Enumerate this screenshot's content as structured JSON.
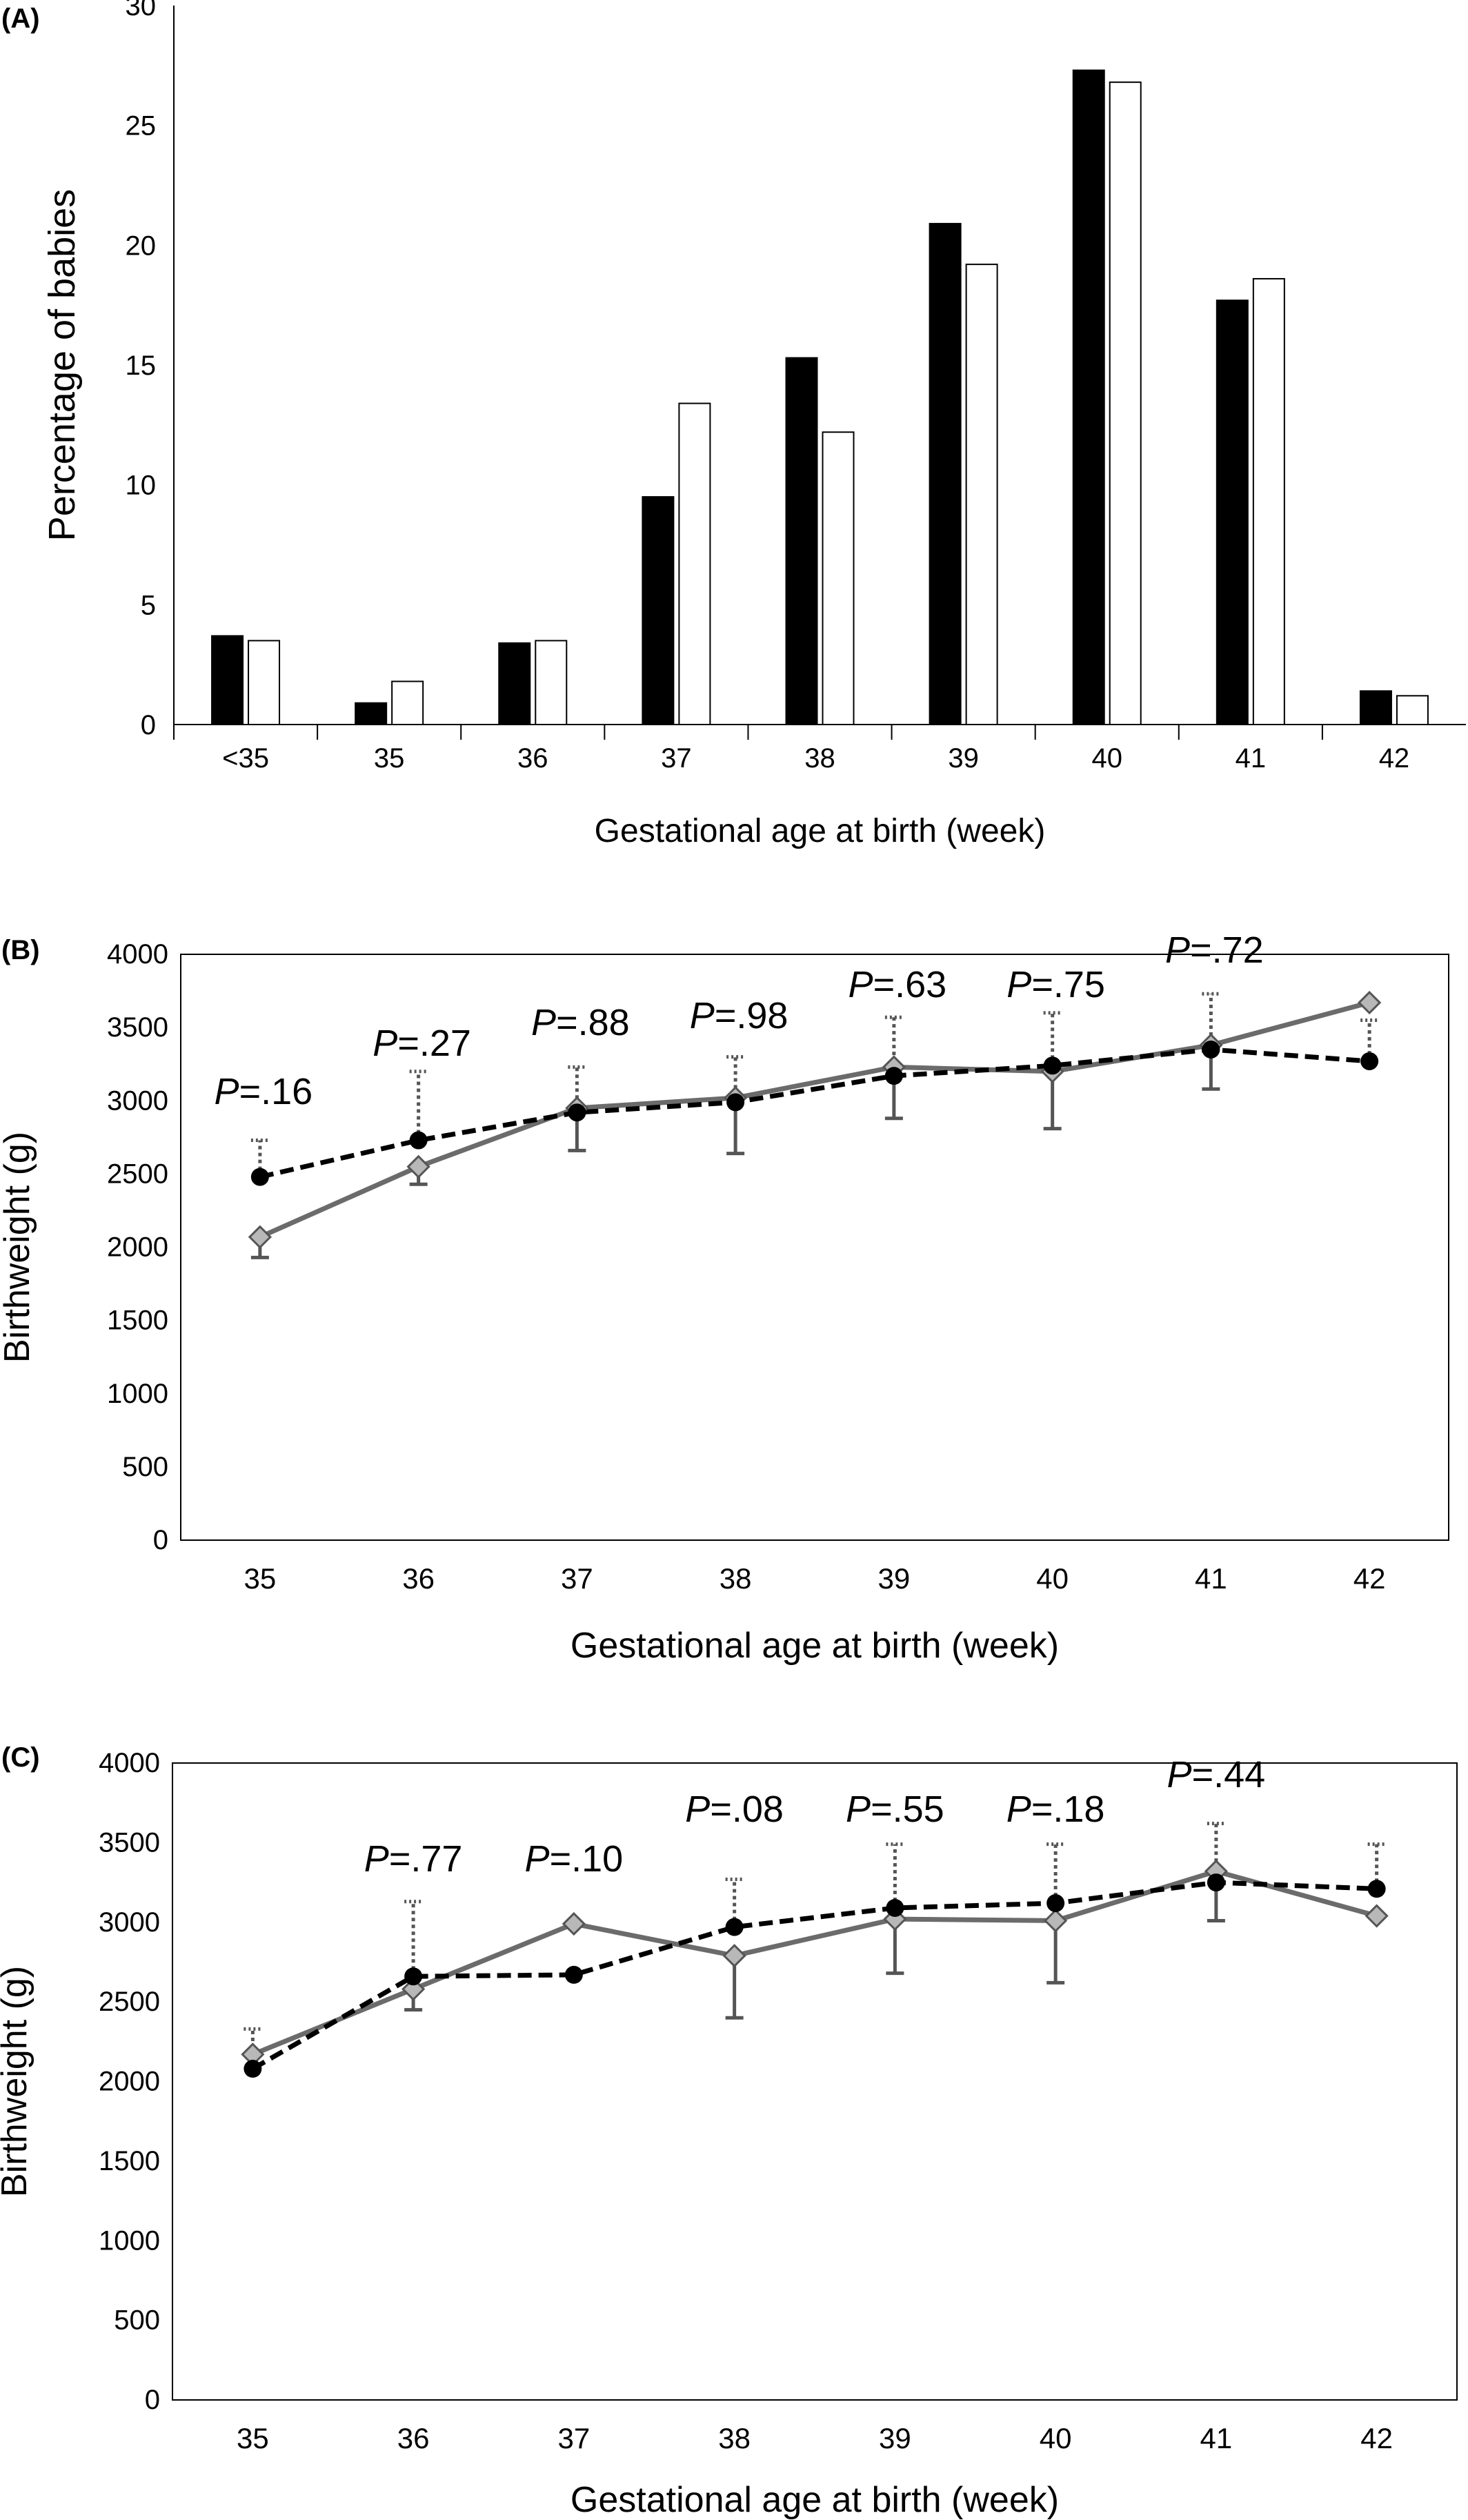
{
  "chart_data": [
    {
      "panel": "(A)",
      "type": "bar",
      "categories": [
        "<35",
        "35",
        "36",
        "37",
        "38",
        "39",
        "40",
        "41",
        "42"
      ],
      "series": [
        {
          "values": [
            3.7,
            0.9,
            3.4,
            9.5,
            15.3,
            20.9,
            27.3,
            17.7,
            1.4
          ],
          "color": "#000000"
        },
        {
          "values": [
            3.5,
            1.8,
            3.5,
            13.4,
            12.2,
            19.2,
            26.8,
            18.6,
            1.2
          ],
          "color": "#ffffff"
        }
      ],
      "xlabel": "Gestational age at birth (week)",
      "ylabel": "Percentage of babies",
      "ylim": [
        0,
        30
      ],
      "yticks": [
        0,
        5,
        10,
        15,
        20,
        25,
        30
      ]
    },
    {
      "panel": "(B)",
      "type": "line",
      "categories": [
        "35",
        "36",
        "37",
        "38",
        "39",
        "40",
        "41",
        "42"
      ],
      "series": [
        {
          "style": "dashed-black-circle",
          "values": [
            2480,
            2730,
            2920,
            2990,
            3170,
            3240,
            3350,
            3270
          ],
          "upper_error": [
            2730,
            3200,
            3230,
            3300,
            3570,
            3600,
            3730,
            3550
          ]
        },
        {
          "style": "solid-gray-diamond",
          "values": [
            2070,
            2550,
            2950,
            3020,
            3230,
            3200,
            3380,
            3670
          ],
          "lower_error": [
            1930,
            2430,
            2660,
            2640,
            2880,
            2810,
            3080,
            null
          ]
        }
      ],
      "p_labels": [
        {
          "prefix": "P",
          "text": "=.16",
          "x": "35"
        },
        {
          "prefix": "P",
          "text": "=.27",
          "x": "36"
        },
        {
          "prefix": "P",
          "text": "=.88",
          "x": "37"
        },
        {
          "prefix": "P",
          "text": "=.98",
          "x": "38"
        },
        {
          "prefix": "P",
          "text": "=.63",
          "x": "39"
        },
        {
          "prefix": "P",
          "text": "=.75",
          "x": "40"
        },
        {
          "prefix": "P",
          "text": "=.72",
          "x": "41"
        }
      ],
      "xlabel": "Gestational age at birth (week)",
      "ylabel": "Birthweight (g)",
      "ylim": [
        0,
        4000
      ],
      "yticks": [
        0,
        500,
        1000,
        1500,
        2000,
        2500,
        3000,
        3500,
        4000
      ]
    },
    {
      "panel": "(C)",
      "type": "line",
      "categories": [
        "35",
        "36",
        "37",
        "38",
        "39",
        "40",
        "41",
        "42"
      ],
      "series": [
        {
          "style": "dashed-black-circle",
          "values": [
            2080,
            2660,
            2670,
            2970,
            3090,
            3120,
            3250,
            3210
          ],
          "upper_error": [
            2330,
            3130,
            null,
            3270,
            3490,
            3490,
            3620,
            3490
          ]
        },
        {
          "style": "solid-gray-diamond",
          "values": [
            2170,
            2580,
            2990,
            2790,
            3020,
            3010,
            3320,
            3040
          ],
          "lower_error": [
            null,
            2450,
            null,
            2400,
            2680,
            2620,
            3010,
            null
          ]
        }
      ],
      "p_labels": [
        {
          "prefix": "P",
          "text": "=.77",
          "x": "36"
        },
        {
          "prefix": "P",
          "text": "=.10",
          "x": "37"
        },
        {
          "prefix": "P",
          "text": "=.08",
          "x": "38"
        },
        {
          "prefix": "P",
          "text": "=.55",
          "x": "39"
        },
        {
          "prefix": "P",
          "text": "=.18",
          "x": "40"
        },
        {
          "prefix": "P",
          "text": "=.44",
          "x": "41"
        }
      ],
      "xlabel": "Gestational age at birth (week)",
      "ylabel": "Birthweight (g)",
      "ylim": [
        0,
        4000
      ],
      "yticks": [
        0,
        500,
        1000,
        1500,
        2000,
        2500,
        3000,
        3500,
        4000
      ]
    }
  ]
}
